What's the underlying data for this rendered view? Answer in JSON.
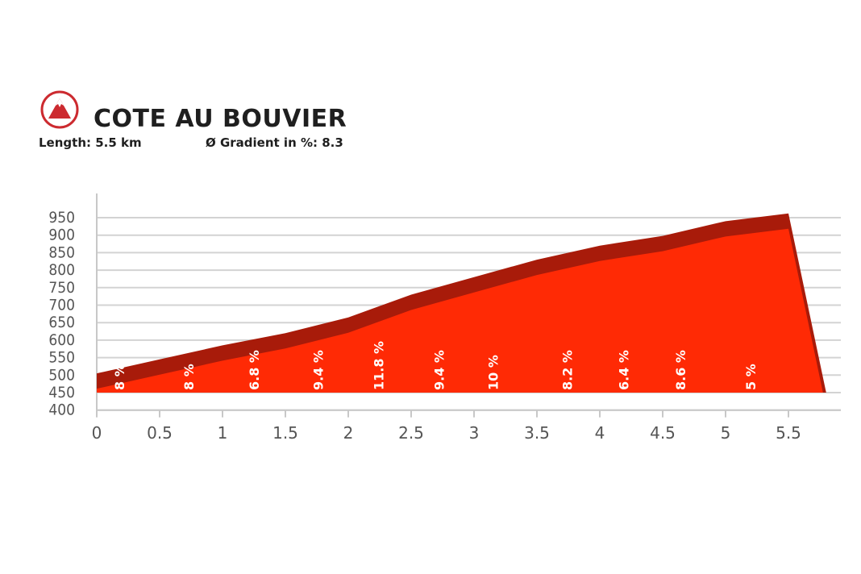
{
  "header": {
    "title": "COTE AU BOUVIER",
    "length_label": "Length:",
    "length_value": "5.5 km",
    "gradient_label": "Ø Gradient in %:",
    "gradient_value": "8.3",
    "logo_icon": "mountain-icon",
    "logo_color": "#cc2a2f"
  },
  "chart_data": {
    "type": "area",
    "title": "COTE AU BOUVIER",
    "xlabel": "",
    "ylabel": "",
    "xlim": [
      0,
      5.8
    ],
    "ylim": [
      400,
      975
    ],
    "x_ticks": [
      0,
      0.5,
      1,
      1.5,
      2,
      2.5,
      3,
      3.5,
      4,
      4.5,
      5,
      5.5
    ],
    "x_tick_labels": [
      "0",
      "0.5",
      "1",
      "1.5",
      "2",
      "2.5",
      "3",
      "3.5",
      "4",
      "4.5",
      "5",
      "5.5"
    ],
    "y_ticks": [
      400,
      450,
      500,
      550,
      600,
      650,
      700,
      750,
      800,
      850,
      900,
      950
    ],
    "y_tick_labels": [
      "400",
      "450",
      "500",
      "550",
      "600",
      "650",
      "700",
      "750",
      "800",
      "850",
      "900",
      "950"
    ],
    "grid": true,
    "profile": [
      {
        "x": 0,
        "y": 505
      },
      {
        "x": 0.5,
        "y": 545
      },
      {
        "x": 1,
        "y": 585
      },
      {
        "x": 1.5,
        "y": 620
      },
      {
        "x": 2,
        "y": 665
      },
      {
        "x": 2.5,
        "y": 730
      },
      {
        "x": 3,
        "y": 780
      },
      {
        "x": 3.5,
        "y": 830
      },
      {
        "x": 4,
        "y": 870
      },
      {
        "x": 4.5,
        "y": 898
      },
      {
        "x": 5,
        "y": 940
      },
      {
        "x": 5.5,
        "y": 962
      },
      {
        "x": 5.8,
        "y": 450
      }
    ],
    "gradients": [
      {
        "x": 0.18,
        "label": "8 %"
      },
      {
        "x": 0.73,
        "label": "8 %"
      },
      {
        "x": 1.25,
        "label": "6.8 %"
      },
      {
        "x": 1.76,
        "label": "9.4 %"
      },
      {
        "x": 2.24,
        "label": "11.8 %"
      },
      {
        "x": 2.72,
        "label": "9.4 %"
      },
      {
        "x": 3.15,
        "label": "10 %"
      },
      {
        "x": 3.74,
        "label": "8.2 %"
      },
      {
        "x": 4.19,
        "label": "6.4 %"
      },
      {
        "x": 4.64,
        "label": "8.6 %"
      },
      {
        "x": 5.2,
        "label": "5 %"
      }
    ],
    "colors": {
      "fill": "#ff2a05",
      "edge": "#a81b0a",
      "grid": "#d3d3d3",
      "axis": "#c8c8c8",
      "tick_text": "#555555",
      "gradient_text": "#ffffff"
    }
  }
}
